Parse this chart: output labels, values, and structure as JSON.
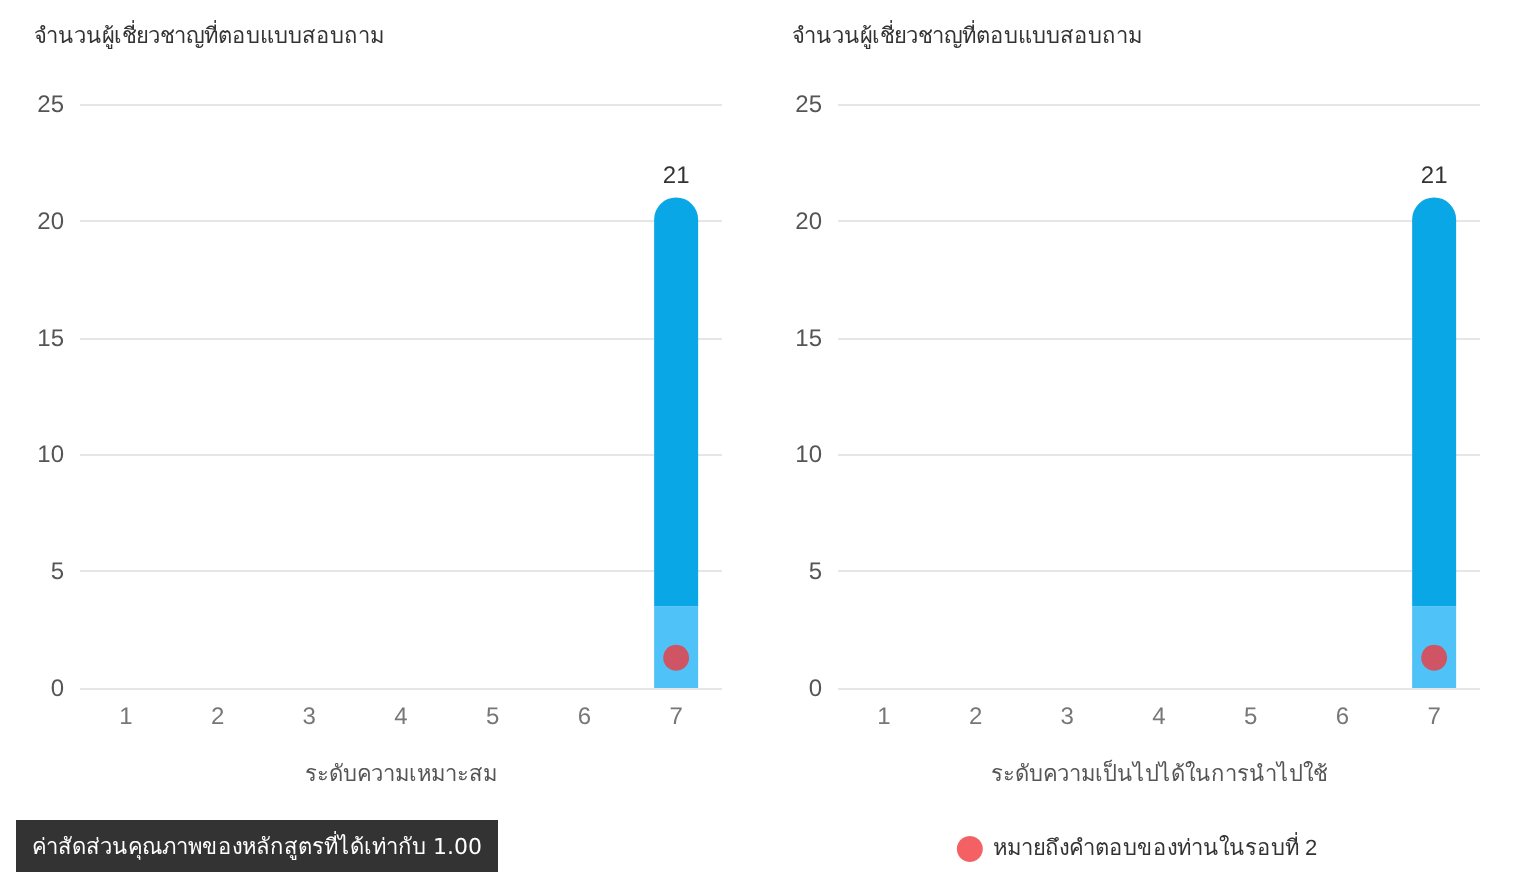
{
  "chart_data": [
    {
      "type": "bar",
      "title": "จำนวนผู้เชี่ยวชาญที่ตอบแบบสอบถาม",
      "xlabel": "ระดับความเหมาะสม",
      "categories": [
        "1",
        "2",
        "3",
        "4",
        "5",
        "6",
        "7"
      ],
      "stacked": true,
      "series": [
        {
          "color": "#4fc3f7",
          "values": [
            0,
            0,
            0,
            0,
            0,
            0,
            3.5
          ]
        },
        {
          "color": "#0aa7e6",
          "values": [
            0,
            0,
            0,
            0,
            0,
            0,
            17.5
          ]
        },
        {
          "type": "scatter",
          "color": "#f0393f",
          "x": [
            "7"
          ],
          "values": [
            1.3
          ]
        }
      ],
      "totals": [
        null,
        null,
        null,
        null,
        null,
        null,
        "21"
      ],
      "ylim": [
        0,
        25
      ],
      "yticks": [
        0,
        5,
        10,
        15,
        20,
        25
      ],
      "grid": "y",
      "marker": "circle",
      "legend": false,
      "annotations": [
        "ค่าสัดส่วนคุณภาพของหลักสูตรที่ได้เท่ากับ 1.00"
      ]
    },
    {
      "type": "bar",
      "title": "จำนวนผู้เชี่ยวชาญที่ตอบแบบสอบถาม",
      "xlabel": "ระดับความเป็นไปได้ในการนำไปใช้",
      "categories": [
        "1",
        "2",
        "3",
        "4",
        "5",
        "6",
        "7"
      ],
      "stacked": true,
      "series": [
        {
          "color": "#4fc3f7",
          "values": [
            0,
            0,
            0,
            0,
            0,
            0,
            3.5
          ]
        },
        {
          "color": "#0aa7e6",
          "values": [
            0,
            0,
            0,
            0,
            0,
            0,
            17.5
          ]
        },
        {
          "type": "scatter",
          "name": "หมายถึงคำตอบของท่านในรอบที่ 2",
          "color": "#f0393f",
          "x": [
            "7"
          ],
          "values": [
            1.3
          ]
        }
      ],
      "totals": [
        null,
        null,
        null,
        null,
        null,
        null,
        "21"
      ],
      "ylim": [
        0,
        25
      ],
      "yticks": [
        0,
        5,
        10,
        15,
        20,
        25
      ],
      "grid": "y",
      "marker": "circle",
      "legend": "bottom"
    }
  ]
}
